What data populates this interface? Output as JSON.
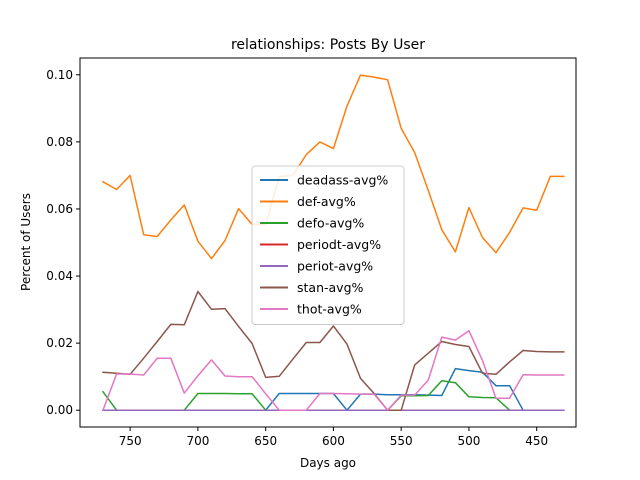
{
  "chart_data": {
    "type": "line",
    "title": "relationships: Posts By User",
    "xlabel": "Days ago",
    "ylabel": "Percent of Users",
    "xlim": [
      787,
      421
    ],
    "ylim": [
      -0.005,
      0.105
    ],
    "x_reversed": true,
    "xticks": [
      750,
      700,
      650,
      600,
      550,
      500,
      450
    ],
    "yticks": [
      0.0,
      0.02,
      0.04,
      0.06,
      0.08,
      0.1
    ],
    "ytick_labels": [
      "0.00",
      "0.02",
      "0.04",
      "0.06",
      "0.08",
      "0.10"
    ],
    "grid": false,
    "legend_placement": "center",
    "x": [
      770,
      760,
      750,
      740,
      730,
      720,
      710,
      700,
      690,
      680,
      670,
      660,
      650,
      640,
      630,
      620,
      610,
      600,
      590,
      580,
      570,
      560,
      550,
      540,
      530,
      520,
      510,
      500,
      490,
      480,
      470,
      460,
      450,
      440,
      430
    ],
    "series": [
      {
        "name": "deadass-avg%",
        "color": "#1f77b4",
        "values": [
          0.0,
          0.0,
          0.0,
          0.0,
          0.0,
          0.0,
          0.0,
          0.0,
          0.0,
          0.0,
          0.0,
          0.0,
          0.0,
          0.005,
          0.005,
          0.005,
          0.005,
          0.005,
          0.0,
          0.0048,
          0.0048,
          0.0046,
          0.0046,
          0.0046,
          0.0045,
          0.0044,
          0.0124,
          0.0118,
          0.0113,
          0.0073,
          0.0073,
          0.0,
          0.0,
          0.0,
          0.0
        ]
      },
      {
        "name": "def-avg%",
        "color": "#ff7f0e",
        "values": [
          0.0681,
          0.0658,
          0.07,
          0.0523,
          0.0518,
          0.0567,
          0.0612,
          0.0504,
          0.0452,
          0.0506,
          0.0601,
          0.0554,
          0.0554,
          0.0696,
          0.07,
          0.0762,
          0.08,
          0.078,
          0.0907,
          0.0999,
          0.0993,
          0.0985,
          0.084,
          0.0768,
          0.0655,
          0.0538,
          0.0472,
          0.0604,
          0.0515,
          0.047,
          0.053,
          0.0603,
          0.0596,
          0.0697,
          0.0697
        ]
      },
      {
        "name": "defo-avg%",
        "color": "#2ca02c",
        "values": [
          0.0055,
          0.0,
          0.0,
          0.0,
          0.0,
          0.0,
          0.0,
          0.005,
          0.005,
          0.005,
          0.0049,
          0.0049,
          0.0,
          0.0,
          0.0,
          0.0,
          0.0,
          0.0,
          0.0,
          0.0,
          0.0,
          0.0,
          0.0043,
          0.0043,
          0.0044,
          0.0088,
          0.0082,
          0.004,
          0.0038,
          0.0037,
          0.0,
          0.0,
          0.0,
          0.0,
          0.0
        ]
      },
      {
        "name": "periodt-avg%",
        "color": "#d62728",
        "values": [
          0.0,
          0.0,
          0.0,
          0.0,
          0.0,
          0.0,
          0.0,
          0.0,
          0.0,
          0.0,
          0.0,
          0.0,
          0.0,
          0.0,
          0.0,
          0.0,
          0.0,
          0.0,
          0.0,
          0.0,
          0.0,
          0.0,
          0.0,
          0.0,
          0.0,
          0.0,
          0.0,
          0.0,
          0.0,
          0.0,
          0.0,
          0.0,
          0.0,
          0.0,
          0.0
        ]
      },
      {
        "name": "periot-avg%",
        "color": "#9467bd",
        "values": [
          0.0,
          0.0,
          0.0,
          0.0,
          0.0,
          0.0,
          0.0,
          0.0,
          0.0,
          0.0,
          0.0,
          0.0,
          0.0,
          0.0,
          0.0,
          0.0,
          0.0,
          0.0,
          0.0,
          0.0,
          0.0,
          0.0,
          0.0,
          0.0,
          0.0,
          0.0,
          0.0,
          0.0,
          0.0,
          0.0,
          0.0,
          0.0,
          0.0,
          0.0,
          0.0
        ]
      },
      {
        "name": "stan-avg%",
        "color": "#8c564b",
        "values": [
          0.0113,
          0.011,
          0.0107,
          0.0155,
          0.0205,
          0.0256,
          0.0255,
          0.0354,
          0.0301,
          0.0303,
          0.025,
          0.0199,
          0.0098,
          0.0101,
          0.0152,
          0.0202,
          0.0202,
          0.0251,
          0.0197,
          0.0095,
          0.005,
          0.0,
          0.0,
          0.0135,
          0.017,
          0.0205,
          0.0196,
          0.019,
          0.011,
          0.0107,
          0.0144,
          0.0178,
          0.0175,
          0.0174,
          0.0174
        ]
      },
      {
        "name": "thot-avg%",
        "color": "#e377c2",
        "values": [
          0.0,
          0.0108,
          0.0108,
          0.0105,
          0.0155,
          0.0155,
          0.0051,
          0.0103,
          0.015,
          0.0102,
          0.01,
          0.01,
          0.0049,
          0.0,
          0.0,
          0.0,
          0.005,
          0.005,
          0.0049,
          0.0048,
          0.0048,
          0.0,
          0.0045,
          0.0045,
          0.009,
          0.0218,
          0.0209,
          0.0237,
          0.0148,
          0.0036,
          0.0036,
          0.0106,
          0.0105,
          0.0105,
          0.0105
        ]
      }
    ]
  }
}
